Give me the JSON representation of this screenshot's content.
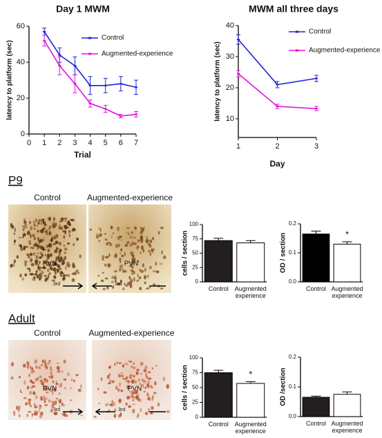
{
  "chart_data": [
    {
      "type": "line",
      "title": "Day 1 MWM",
      "x_label": "Trial",
      "y_label": "latency to platform (sec)",
      "x": [
        1,
        2,
        3,
        4,
        5,
        6,
        7
      ],
      "xlim": [
        0,
        7
      ],
      "xticks": [
        0,
        1,
        2,
        3,
        4,
        5,
        6,
        7
      ],
      "ylim": [
        0,
        60
      ],
      "yticks": [
        0,
        20,
        40,
        60
      ],
      "legend": "upper right",
      "series": [
        {
          "name": "Control",
          "color": "#1f1fd6",
          "values": [
            57,
            44,
            38,
            27,
            27,
            28,
            26
          ],
          "errors": [
            2,
            4,
            5,
            5,
            4,
            4,
            4
          ]
        },
        {
          "name": "Augmented-experience",
          "color": "#e010e0",
          "values": [
            52,
            38,
            28,
            17,
            14,
            10,
            11
          ],
          "errors": [
            3,
            5,
            5,
            2,
            2,
            1,
            1.5
          ]
        }
      ]
    },
    {
      "type": "line",
      "title": "MWM all three days",
      "x_label": "Day",
      "y_label": "latency to platform (sec)",
      "x": [
        1,
        2,
        3
      ],
      "xlim": [
        1,
        3
      ],
      "xticks": [
        1,
        2,
        3
      ],
      "ylim": [
        4,
        40
      ],
      "yticks": [
        10,
        20,
        30,
        40
      ],
      "legend": "upper right",
      "series": [
        {
          "name": "Control",
          "color": "#1f1fd6",
          "values": [
            35.5,
            21,
            23
          ],
          "errors": [
            1.5,
            1,
            1
          ]
        },
        {
          "name": "Augmented-experience",
          "color": "#e010e0",
          "values": [
            24.5,
            14,
            13.3
          ],
          "errors": [
            1,
            0.7,
            0.7
          ]
        }
      ]
    },
    {
      "type": "bar",
      "y_label": "cells / section",
      "categories": [
        "Control",
        "Augmented experience"
      ],
      "values": [
        72,
        68
      ],
      "errors": [
        4,
        4
      ],
      "colors": [
        "#231f20",
        "#ffffff"
      ],
      "ylim": [
        0,
        100
      ],
      "yticks": [
        0,
        25,
        50,
        75,
        100
      ],
      "significance": [
        null,
        null
      ]
    },
    {
      "type": "bar",
      "y_label": "OD / section",
      "categories": [
        "Control",
        "Augmented experience"
      ],
      "values": [
        0.165,
        0.13
      ],
      "errors": [
        0.01,
        0.008
      ],
      "colors": [
        "#000000",
        "#ffffff"
      ],
      "ylim": [
        0,
        0.2
      ],
      "yticks": [
        {
          "value": 0,
          "label": "0.0"
        },
        0.1,
        0.2
      ],
      "significance": [
        null,
        "*"
      ]
    },
    {
      "type": "bar",
      "y_label": "cells / section",
      "categories": [
        "Control",
        "Augmented experience"
      ],
      "values": [
        75,
        57
      ],
      "errors": [
        4,
        3
      ],
      "colors": [
        "#231f20",
        "#ffffff"
      ],
      "ylim": [
        0,
        100
      ],
      "yticks": [
        0,
        25,
        50,
        75,
        100
      ],
      "significance": [
        null,
        "*"
      ]
    },
    {
      "type": "bar",
      "y_label": "OD /section",
      "categories": [
        "Control",
        "Augmented experience"
      ],
      "values": [
        0.065,
        0.075
      ],
      "errors": [
        0.004,
        0.008
      ],
      "colors": [
        "#231f20",
        "#ffffff"
      ],
      "ylim": [
        0,
        0.2
      ],
      "yticks": [
        {
          "value": 0,
          "label": "0.0"
        },
        0.1,
        0.2
      ],
      "significance": [
        null,
        null
      ]
    }
  ],
  "micrographs": [
    {
      "label": "P9",
      "images": [
        {
          "title": "Control",
          "region": "PVN",
          "marker": "3rd"
        },
        {
          "title": "Augmented-experience",
          "region": "PVN",
          "marker": "3rd"
        }
      ]
    },
    {
      "label": "Adult",
      "images": [
        {
          "title": "Control",
          "region": "PVN",
          "marker": "3rd"
        },
        {
          "title": "Augmented-experience",
          "region": "PVN",
          "marker": "3rd"
        }
      ]
    }
  ]
}
